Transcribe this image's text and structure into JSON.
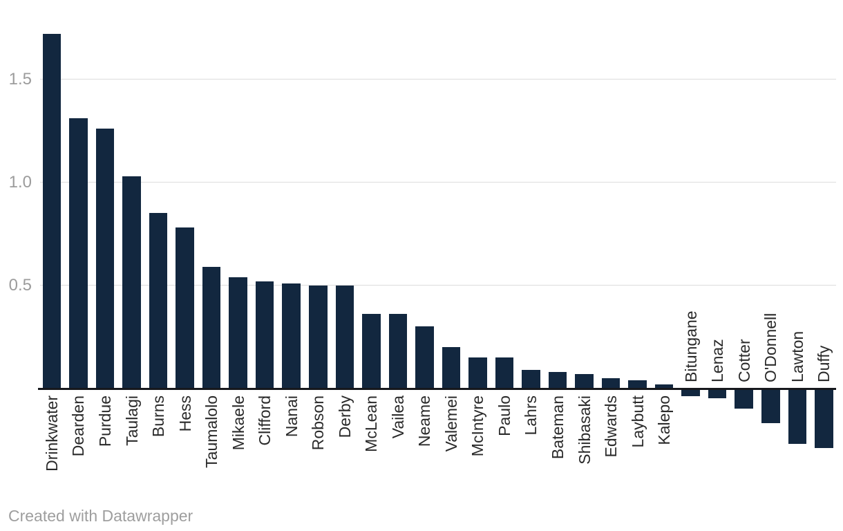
{
  "chart_data": {
    "type": "bar",
    "title": "",
    "xlabel": "",
    "ylabel": "",
    "categories": [
      "Drinkwater",
      "Dearden",
      "Purdue",
      "Taulagi",
      "Burns",
      "Hess",
      "Taumalolo",
      "Mikaele",
      "Clifford",
      "Nanai",
      "Robson",
      "Derby",
      "McLean",
      "Vailea",
      "Neame",
      "Valemei",
      "McIntyre",
      "Paulo",
      "Lahrs",
      "Bateman",
      "Shibasaki",
      "Edwards",
      "Laybutt",
      "Kalepo",
      "Bitungane",
      "Lenaz",
      "Cotter",
      "O'Donnell",
      "Lawton",
      "Duffy"
    ],
    "values": [
      1.72,
      1.31,
      1.26,
      1.03,
      0.85,
      0.78,
      0.59,
      0.54,
      0.52,
      0.51,
      0.5,
      0.5,
      0.36,
      0.36,
      0.3,
      0.2,
      0.15,
      0.15,
      0.09,
      0.08,
      0.07,
      0.05,
      0.04,
      0.02,
      -0.04,
      -0.05,
      -0.1,
      -0.17,
      -0.27,
      -0.29
    ],
    "yticks": [
      {
        "value": 0.5,
        "label": "0.5"
      },
      {
        "value": 1.0,
        "label": "1.0"
      },
      {
        "value": 1.5,
        "label": "1.5"
      }
    ],
    "ylim": [
      -0.3,
      1.9
    ],
    "grid": "horizontal",
    "legend": "none",
    "bar_color": "#12273f",
    "gridline_color": "#dcdcdc",
    "axis_color": "#16181d",
    "ytick_color": "#9c9c9c",
    "xlabel_color": "#2a2a2a"
  },
  "footer": {
    "credit": "Created with Datawrapper"
  }
}
